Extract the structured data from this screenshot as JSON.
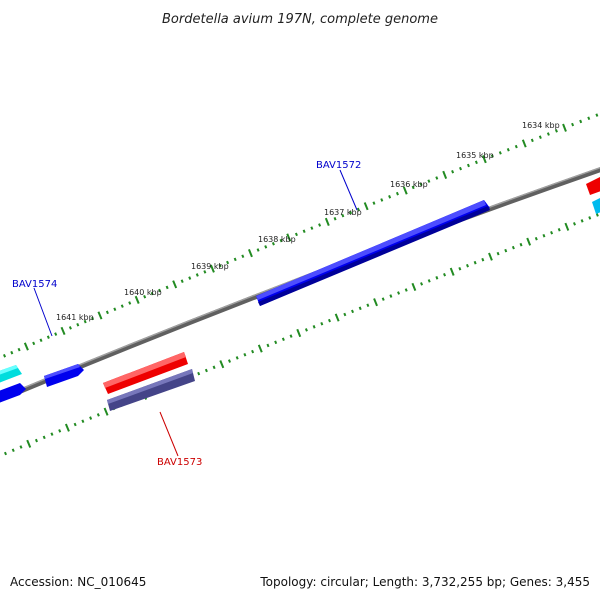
{
  "title": "Bordetella avium 197N, complete genome",
  "accession": "Accession: NC_010645",
  "summary": "Topology: circular; Length: 3,732,255 bp; Genes: 3,455",
  "tick_labels": [
    "1634 kbp",
    "1635 kbp",
    "1636 kbp",
    "1637 kbp",
    "1638 kbp",
    "1639 kbp",
    "1640 kbp",
    "1641 kbp"
  ],
  "gene_labels": [
    {
      "name": "BAV1572",
      "color": "#0000cc"
    },
    {
      "name": "BAV1574",
      "color": "#0000cc"
    },
    {
      "name": "BAV1573",
      "color": "#cc0000"
    }
  ],
  "colors": {
    "backbone": "#808080",
    "ticks": "#228b22",
    "forward_gene": "#0000ee",
    "reverse_gene": "#ee0000",
    "rna_gene": "#00dddd",
    "pseudo_gene": "#444488"
  }
}
